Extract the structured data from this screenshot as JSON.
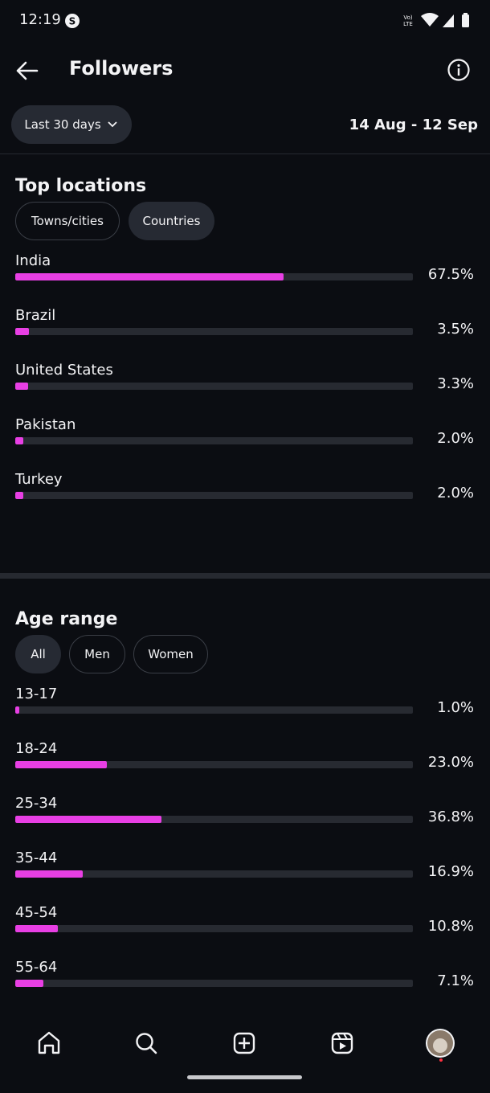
{
  "status_bar": {
    "time": "12:19"
  },
  "header": {
    "title": "Followers"
  },
  "filter": {
    "period": "Last 30 days",
    "date_range": "14 Aug - 12 Sep"
  },
  "top_locations": {
    "title": "Top locations",
    "tabs": [
      "Towns/cities",
      "Countries"
    ],
    "active_tab": 1,
    "xlim": [
      0,
      100
    ],
    "bar_color": "#e83fe4",
    "rows": [
      {
        "name": "India",
        "value": 67.5,
        "label": "67.5%"
      },
      {
        "name": "Brazil",
        "value": 3.5,
        "label": "3.5%"
      },
      {
        "name": "United States",
        "value": 3.3,
        "label": "3.3%"
      },
      {
        "name": "Pakistan",
        "value": 2.0,
        "label": "2.0%"
      },
      {
        "name": "Turkey",
        "value": 2.0,
        "label": "2.0%"
      }
    ]
  },
  "age_range": {
    "title": "Age range",
    "tabs": [
      "All",
      "Men",
      "Women"
    ],
    "active_tab": 0,
    "xlim": [
      0,
      100
    ],
    "bar_color": "#e83fe4",
    "rows": [
      {
        "name": "13-17",
        "value": 1.0,
        "label": "1.0%"
      },
      {
        "name": "18-24",
        "value": 23.0,
        "label": "23.0%"
      },
      {
        "name": "25-34",
        "value": 36.8,
        "label": "36.8%"
      },
      {
        "name": "35-44",
        "value": 16.9,
        "label": "16.9%"
      },
      {
        "name": "45-54",
        "value": 10.8,
        "label": "10.8%"
      },
      {
        "name": "55-64",
        "value": 7.1,
        "label": "7.1%"
      }
    ]
  }
}
